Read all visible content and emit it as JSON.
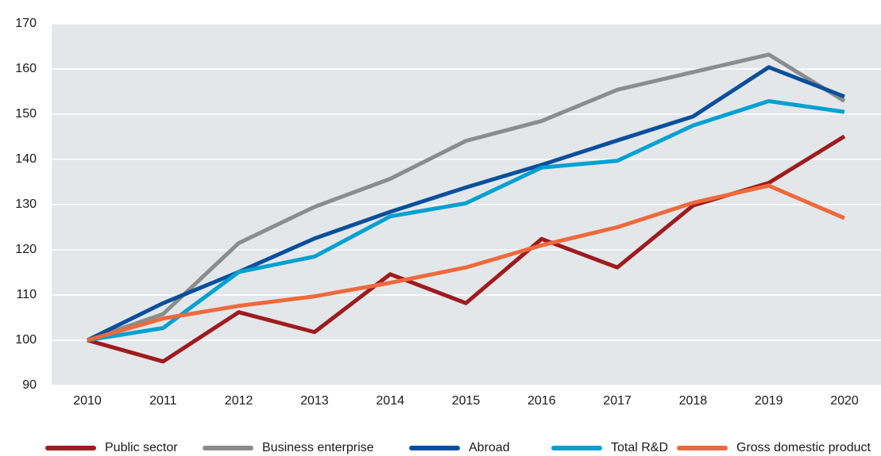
{
  "chart_data": {
    "type": "line",
    "categories": [
      "2010",
      "2011",
      "2012",
      "2013",
      "2014",
      "2015",
      "2016",
      "2017",
      "2018",
      "2019",
      "2020"
    ],
    "series": [
      {
        "name": "Public sector",
        "color": "#9e1b1e",
        "values": [
          100,
          95.3,
          106.2,
          101.8,
          114.6,
          108.2,
          122.4,
          116.1,
          129.8,
          134.8,
          145.1
        ]
      },
      {
        "name": "Business enterprise",
        "color": "#8c8c8c",
        "values": [
          100,
          105.8,
          121.5,
          129.5,
          135.7,
          144.1,
          148.5,
          155.4,
          159.3,
          163.2,
          152.9
        ]
      },
      {
        "name": "Abroad",
        "color": "#0a4f9c",
        "values": [
          100,
          108.2,
          115.1,
          122.5,
          128.4,
          133.8,
          138.8,
          144.2,
          149.5,
          160.4,
          153.9
        ]
      },
      {
        "name": "Total R&D",
        "color": "#00a0d2",
        "values": [
          100,
          102.7,
          115.1,
          118.5,
          127.4,
          130.3,
          138.2,
          139.7,
          147.5,
          152.9,
          150.5
        ]
      },
      {
        "name": "Gross domestic product",
        "color": "#ee6a3c",
        "values": [
          100,
          104.8,
          107.6,
          109.7,
          112.7,
          116.1,
          121.0,
          125.0,
          130.4,
          134.2,
          127.0
        ]
      }
    ],
    "ylim": [
      90,
      170
    ],
    "yticks": [
      90,
      100,
      110,
      120,
      130,
      140,
      150,
      160,
      170
    ],
    "grid": true,
    "legend": "bottom"
  }
}
